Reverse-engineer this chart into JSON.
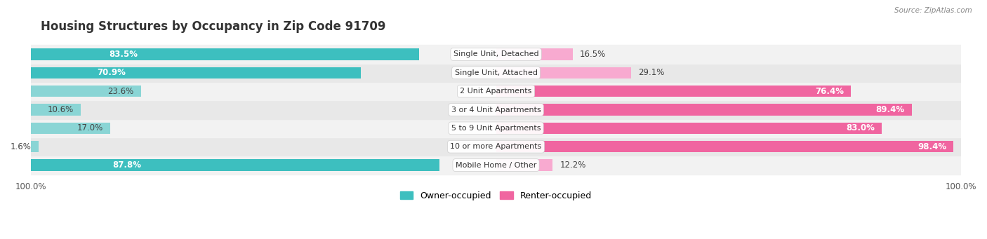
{
  "title": "Housing Structures by Occupancy in Zip Code 91709",
  "source": "Source: ZipAtlas.com",
  "categories": [
    "Single Unit, Detached",
    "Single Unit, Attached",
    "2 Unit Apartments",
    "3 or 4 Unit Apartments",
    "5 to 9 Unit Apartments",
    "10 or more Apartments",
    "Mobile Home / Other"
  ],
  "owner_pct": [
    83.5,
    70.9,
    23.6,
    10.6,
    17.0,
    1.6,
    87.8
  ],
  "renter_pct": [
    16.5,
    29.1,
    76.4,
    89.4,
    83.0,
    98.4,
    12.2
  ],
  "owner_color": "#3dbfbf",
  "renter_color": "#f065a0",
  "owner_color_light": "#8ad5d5",
  "renter_color_light": "#f8aad0",
  "title_fontsize": 12,
  "bar_height": 0.62,
  "legend_owner": "Owner-occupied",
  "legend_renter": "Renter-occupied",
  "row_colors": [
    "#f2f2f2",
    "#e8e8e8",
    "#f2f2f2",
    "#e8e8e8",
    "#f2f2f2",
    "#e8e8e8",
    "#f2f2f2"
  ]
}
